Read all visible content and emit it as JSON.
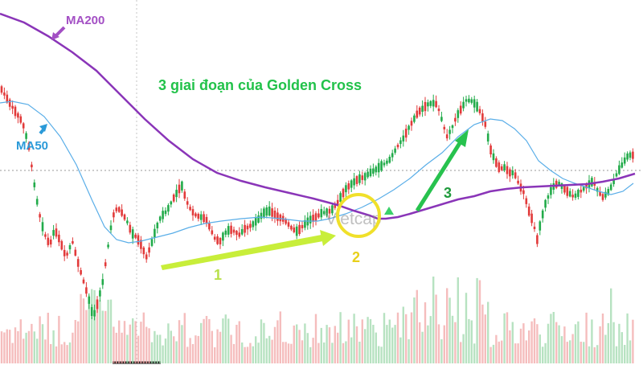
{
  "chart_data": {
    "type": "candlestick",
    "title": "3 giai đoạn của Golden Cross",
    "watermark": "Vietcap",
    "legend": "",
    "grid": false,
    "colors": {
      "up": "#22ab4a",
      "down": "#e23a3a",
      "ma50": "#5aaee8",
      "ma200": "#8a35b8",
      "title": "#22c24a",
      "ma200_label": "#a34fc4",
      "ma50_label": "#2b9ad8",
      "stage1_arrow": "#c8ee3a",
      "stage1_label": "#b8e04a",
      "stage2_circle": "#f0e02a",
      "stage2_label": "#e8d01a",
      "stage3_arrow": "#27c24e",
      "stage3_label": "#1f9a3c"
    },
    "annotations": {
      "ma200": "MA200",
      "ma50": "MA50",
      "stage1": "1",
      "stage2": "2",
      "stage3": "3"
    },
    "price_path": [
      [
        0,
        108
      ],
      [
        6,
        118
      ],
      [
        12,
        128
      ],
      [
        20,
        140
      ],
      [
        28,
        152
      ],
      [
        36,
        182
      ],
      [
        42,
        225
      ],
      [
        48,
        262
      ],
      [
        55,
        290
      ],
      [
        62,
        305
      ],
      [
        68,
        285
      ],
      [
        75,
        300
      ],
      [
        82,
        320
      ],
      [
        90,
        300
      ],
      [
        98,
        330
      ],
      [
        104,
        350
      ],
      [
        110,
        370
      ],
      [
        116,
        395
      ],
      [
        122,
        375
      ],
      [
        128,
        350
      ],
      [
        134,
        310
      ],
      [
        140,
        270
      ],
      [
        146,
        258
      ],
      [
        152,
        265
      ],
      [
        158,
        275
      ],
      [
        164,
        290
      ],
      [
        170,
        295
      ],
      [
        176,
        305
      ],
      [
        182,
        320
      ],
      [
        188,
        305
      ],
      [
        194,
        285
      ],
      [
        200,
        270
      ],
      [
        208,
        262
      ],
      [
        214,
        250
      ],
      [
        220,
        240
      ],
      [
        226,
        230
      ],
      [
        232,
        250
      ],
      [
        238,
        262
      ],
      [
        244,
        268
      ],
      [
        250,
        270
      ],
      [
        256,
        272
      ],
      [
        262,
        285
      ],
      [
        268,
        298
      ],
      [
        274,
        300
      ],
      [
        280,
        290
      ],
      [
        286,
        285
      ],
      [
        292,
        288
      ],
      [
        298,
        292
      ],
      [
        304,
        285
      ],
      [
        310,
        282
      ],
      [
        316,
        278
      ],
      [
        322,
        272
      ],
      [
        328,
        265
      ],
      [
        334,
        262
      ],
      [
        340,
        265
      ],
      [
        346,
        270
      ],
      [
        352,
        272
      ],
      [
        358,
        278
      ],
      [
        364,
        285
      ],
      [
        370,
        288
      ],
      [
        376,
        282
      ],
      [
        382,
        276
      ],
      [
        388,
        272
      ],
      [
        394,
        270
      ],
      [
        400,
        265
      ],
      [
        406,
        264
      ],
      [
        412,
        262
      ],
      [
        418,
        255
      ],
      [
        424,
        245
      ],
      [
        430,
        235
      ],
      [
        436,
        230
      ],
      [
        442,
        225
      ],
      [
        448,
        222
      ],
      [
        454,
        220
      ],
      [
        460,
        215
      ],
      [
        466,
        212
      ],
      [
        472,
        208
      ],
      [
        478,
        204
      ],
      [
        484,
        200
      ],
      [
        490,
        190
      ],
      [
        496,
        180
      ],
      [
        502,
        172
      ],
      [
        508,
        160
      ],
      [
        514,
        150
      ],
      [
        520,
        140
      ],
      [
        526,
        135
      ],
      [
        532,
        130
      ],
      [
        538,
        128
      ],
      [
        544,
        130
      ],
      [
        550,
        150
      ],
      [
        556,
        170
      ],
      [
        562,
        160
      ],
      [
        568,
        145
      ],
      [
        574,
        135
      ],
      [
        580,
        125
      ],
      [
        586,
        125
      ],
      [
        592,
        130
      ],
      [
        598,
        140
      ],
      [
        604,
        155
      ],
      [
        610,
        185
      ],
      [
        616,
        200
      ],
      [
        622,
        210
      ],
      [
        628,
        208
      ],
      [
        634,
        215
      ],
      [
        640,
        215
      ],
      [
        646,
        230
      ],
      [
        652,
        240
      ],
      [
        658,
        262
      ],
      [
        664,
        278
      ],
      [
        668,
        300
      ],
      [
        672,
        280
      ],
      [
        678,
        255
      ],
      [
        684,
        240
      ],
      [
        690,
        230
      ],
      [
        696,
        228
      ],
      [
        702,
        235
      ],
      [
        708,
        240
      ],
      [
        714,
        245
      ],
      [
        720,
        240
      ],
      [
        726,
        235
      ],
      [
        732,
        230
      ],
      [
        738,
        225
      ],
      [
        744,
        238
      ],
      [
        750,
        245
      ],
      [
        756,
        240
      ],
      [
        762,
        230
      ],
      [
        768,
        215
      ],
      [
        774,
        205
      ],
      [
        780,
        195
      ],
      [
        786,
        192
      ],
      [
        790,
        195
      ]
    ],
    "ma50_path": [
      [
        0,
        128
      ],
      [
        15,
        126
      ],
      [
        35,
        130
      ],
      [
        55,
        145
      ],
      [
        75,
        170
      ],
      [
        95,
        205
      ],
      [
        115,
        250
      ],
      [
        130,
        282
      ],
      [
        145,
        298
      ],
      [
        160,
        302
      ],
      [
        175,
        300
      ],
      [
        195,
        295
      ],
      [
        215,
        290
      ],
      [
        235,
        283
      ],
      [
        255,
        278
      ],
      [
        275,
        275
      ],
      [
        300,
        272
      ],
      [
        325,
        270
      ],
      [
        350,
        272
      ],
      [
        375,
        275
      ],
      [
        395,
        275
      ],
      [
        410,
        272
      ],
      [
        430,
        266
      ],
      [
        450,
        258
      ],
      [
        470,
        248
      ],
      [
        490,
        236
      ],
      [
        510,
        222
      ],
      [
        530,
        205
      ],
      [
        550,
        190
      ],
      [
        570,
        170
      ],
      [
        590,
        155
      ],
      [
        610,
        148
      ],
      [
        625,
        150
      ],
      [
        640,
        160
      ],
      [
        655,
        175
      ],
      [
        670,
        200
      ],
      [
        685,
        212
      ],
      [
        700,
        222
      ],
      [
        715,
        228
      ],
      [
        730,
        233
      ],
      [
        745,
        238
      ],
      [
        760,
        242
      ],
      [
        775,
        238
      ],
      [
        788,
        228
      ]
    ],
    "ma200_path": [
      [
        0,
        17
      ],
      [
        30,
        28
      ],
      [
        60,
        45
      ],
      [
        90,
        65
      ],
      [
        120,
        88
      ],
      [
        150,
        118
      ],
      [
        180,
        148
      ],
      [
        210,
        175
      ],
      [
        240,
        198
      ],
      [
        270,
        215
      ],
      [
        300,
        225
      ],
      [
        330,
        233
      ],
      [
        360,
        240
      ],
      [
        390,
        247
      ],
      [
        420,
        255
      ],
      [
        440,
        262
      ],
      [
        460,
        268
      ],
      [
        470,
        272
      ],
      [
        480,
        272
      ],
      [
        495,
        270
      ],
      [
        510,
        266
      ],
      [
        530,
        260
      ],
      [
        550,
        254
      ],
      [
        570,
        248
      ],
      [
        590,
        244
      ],
      [
        610,
        238
      ],
      [
        630,
        235
      ],
      [
        650,
        233
      ],
      [
        670,
        232
      ],
      [
        690,
        231
      ],
      [
        710,
        230
      ],
      [
        730,
        229
      ],
      [
        750,
        226
      ],
      [
        770,
        222
      ],
      [
        790,
        216
      ]
    ]
  }
}
